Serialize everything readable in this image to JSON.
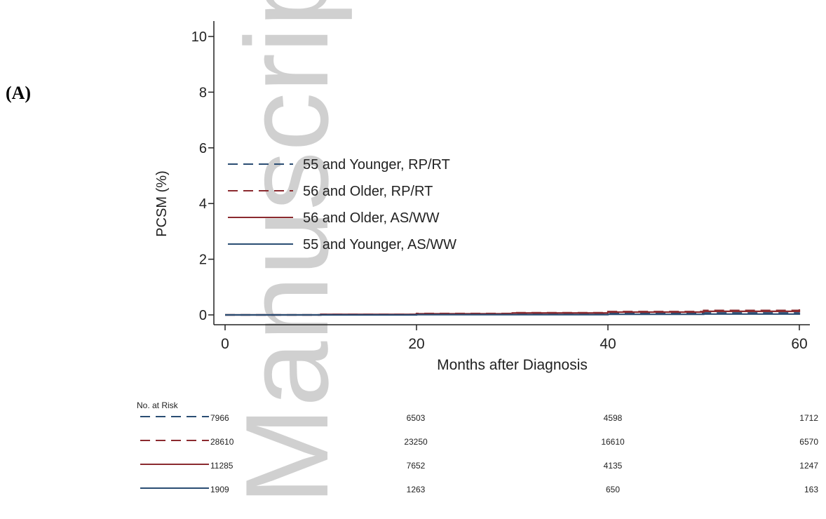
{
  "panel_label": "(A)",
  "watermark_text": "Manuscript",
  "chart_data": {
    "type": "line",
    "title": "",
    "xlabel": "Months after Diagnosis",
    "ylabel": "PCSM (%)",
    "xlim": [
      0,
      60
    ],
    "ylim": [
      0,
      10
    ],
    "xticks": [
      0,
      20,
      40,
      60
    ],
    "yticks": [
      0,
      2,
      4,
      6,
      8,
      10
    ],
    "grid": false,
    "legend_position": "center-left",
    "series": [
      {
        "name": "55 and Younger, RP/RT",
        "color": "#2a4d73",
        "dash": true,
        "x": [
          0,
          10,
          20,
          30,
          40,
          50,
          60
        ],
        "y": [
          0,
          0.01,
          0.02,
          0.03,
          0.05,
          0.07,
          0.09
        ]
      },
      {
        "name": "56 and Older, RP/RT",
        "color": "#8b2a2f",
        "dash": true,
        "x": [
          0,
          10,
          20,
          30,
          40,
          50,
          60
        ],
        "y": [
          0,
          0.02,
          0.05,
          0.08,
          0.12,
          0.16,
          0.2
        ]
      },
      {
        "name": "56 and Older, AS/WW",
        "color": "#8b2a2f",
        "dash": false,
        "x": [
          0,
          10,
          20,
          30,
          40,
          50,
          60
        ],
        "y": [
          0,
          0.02,
          0.04,
          0.07,
          0.1,
          0.13,
          0.16
        ]
      },
      {
        "name": "55 and Younger, AS/WW",
        "color": "#2a4d73",
        "dash": false,
        "x": [
          0,
          10,
          20,
          30,
          40,
          50,
          60
        ],
        "y": [
          0,
          0,
          0.01,
          0.01,
          0.02,
          0.03,
          0.04
        ]
      }
    ],
    "risk_table": {
      "title": "No. at Risk",
      "time_points": [
        0,
        20,
        40,
        60
      ],
      "rows": [
        {
          "series": "55 and Younger, RP/RT",
          "values": [
            "7966",
            "6503",
            "4598",
            "1712"
          ]
        },
        {
          "series": "56 and Older, RP/RT",
          "values": [
            "28610",
            "23250",
            "16610",
            "6570"
          ]
        },
        {
          "series": "56 and Older, AS/WW",
          "values": [
            "11285",
            "7652",
            "4135",
            "1247"
          ]
        },
        {
          "series": "55 and Younger, AS/WW",
          "values": [
            "1909",
            "1263",
            "650",
            "163"
          ]
        }
      ]
    }
  }
}
